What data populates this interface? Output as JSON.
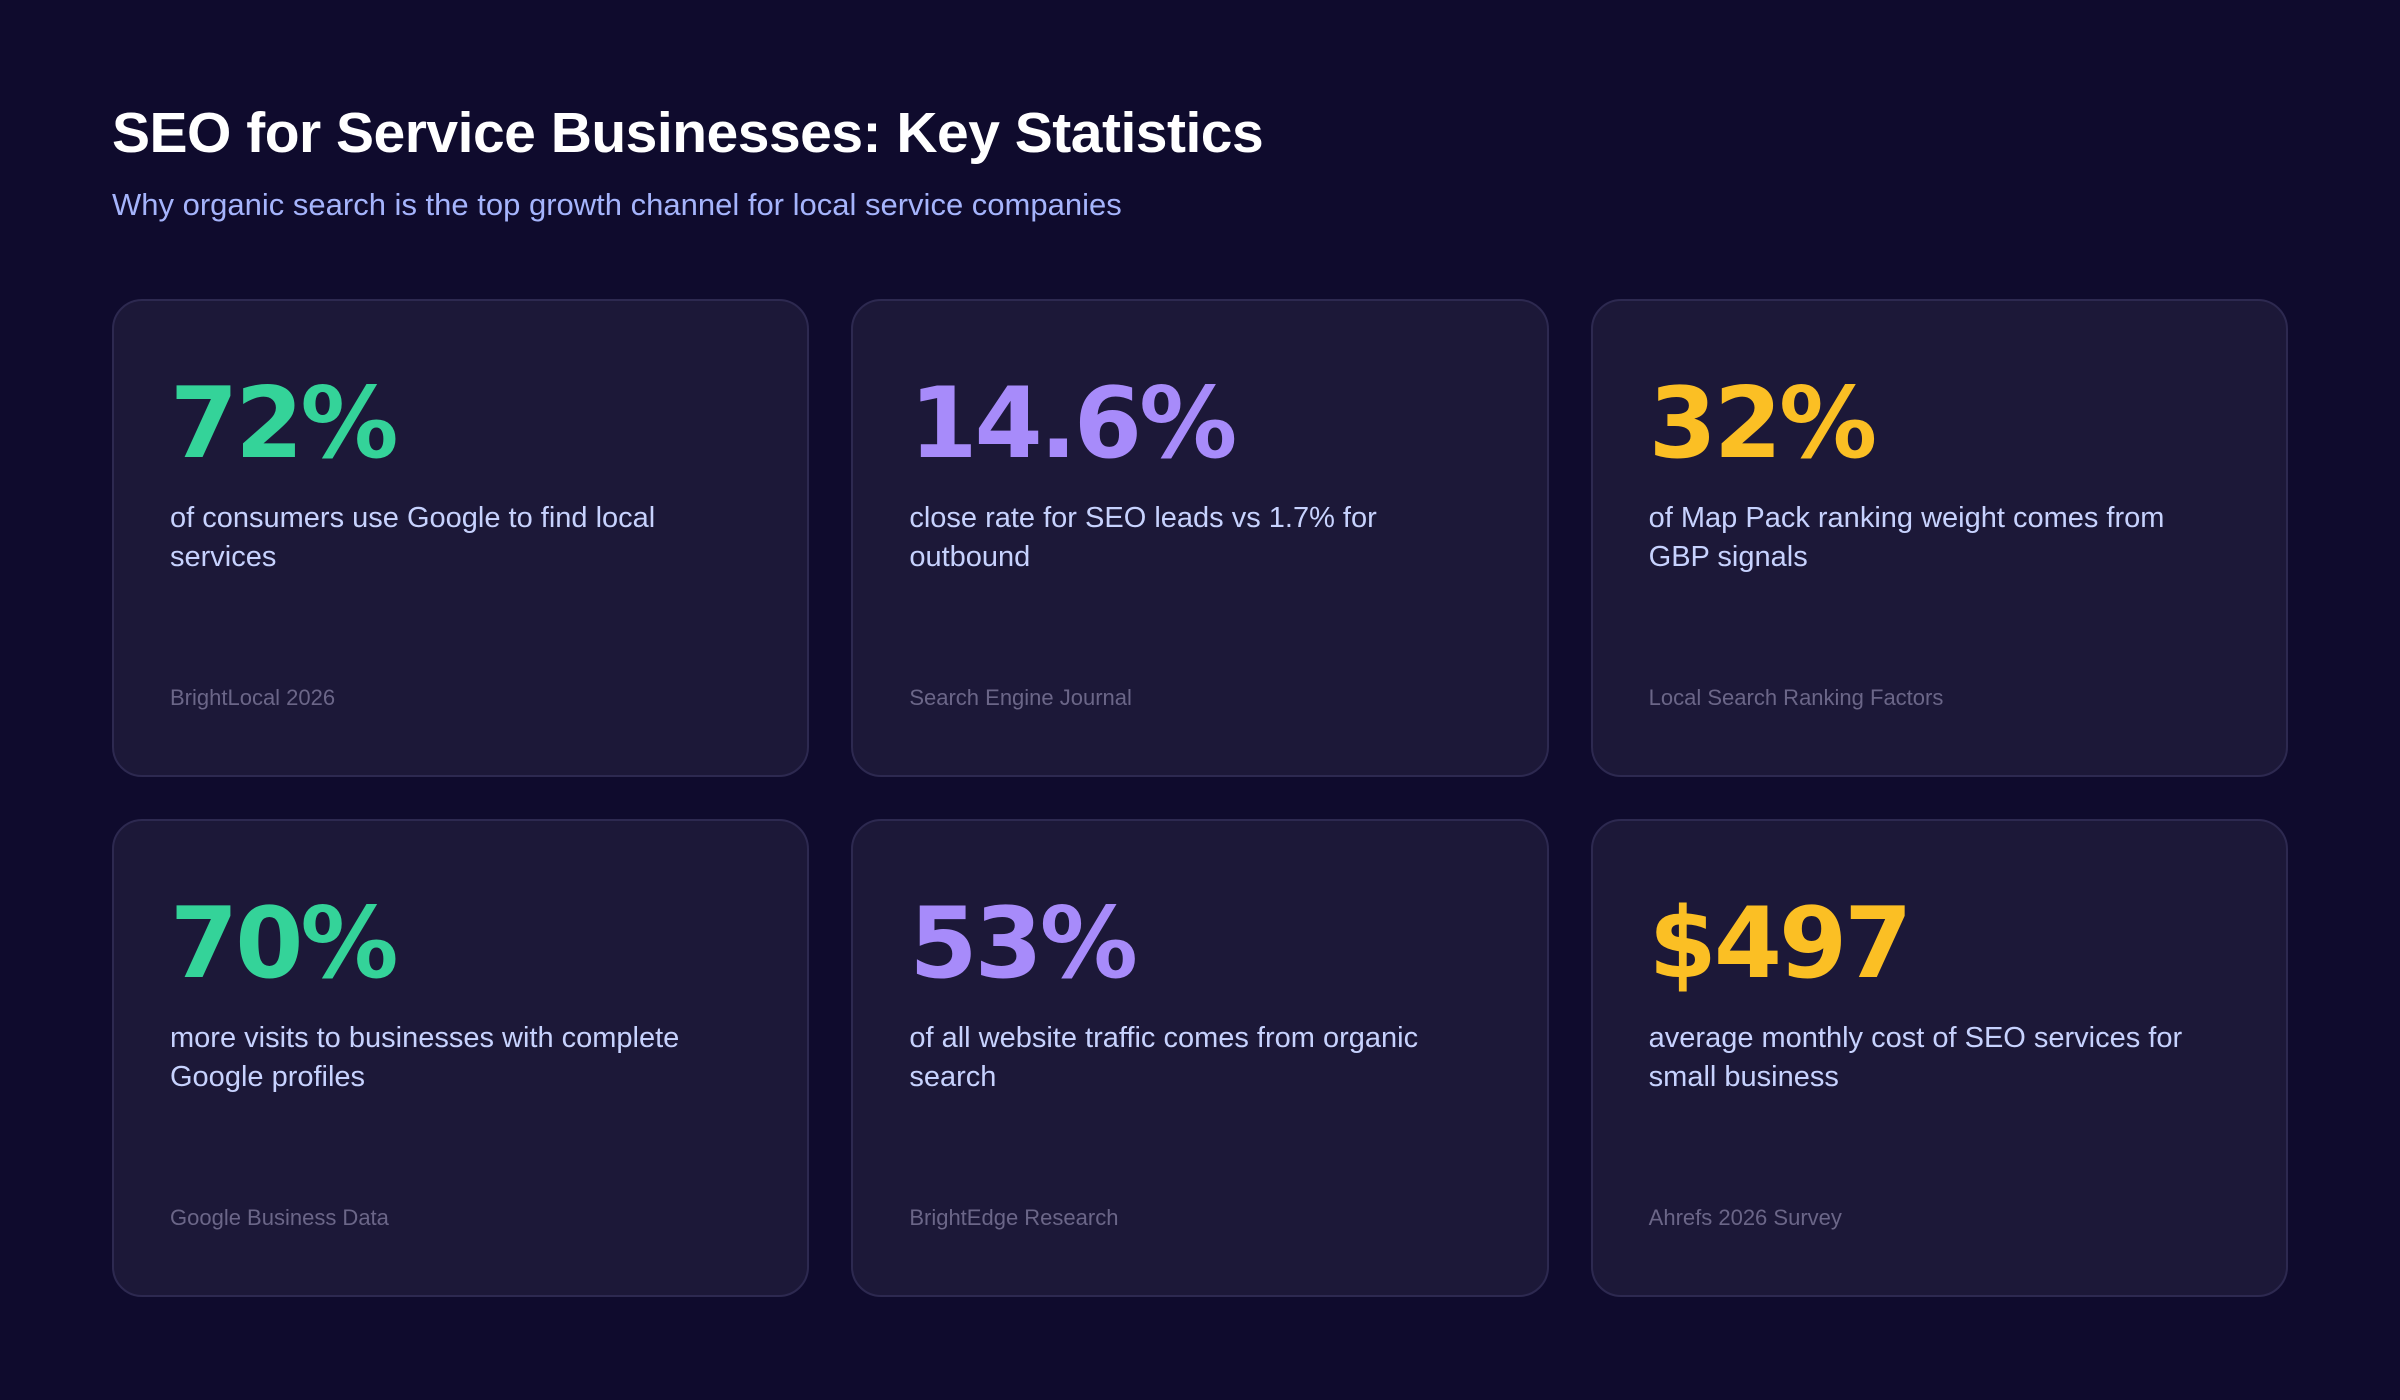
{
  "header": {
    "title": "SEO for Service Businesses: Key Statistics",
    "subtitle": "Why organic search is the top growth channel for local service companies"
  },
  "colors": {
    "green": "#34d399",
    "purple": "#a78bfa",
    "yellow": "#fbbf24",
    "background": "#0f0b2d",
    "card": "#1c1838"
  },
  "stats": [
    {
      "value": "72%",
      "description": "of consumers use Google to find local services",
      "source": "BrightLocal 2026",
      "color": "#34d399"
    },
    {
      "value": "14.6%",
      "description": "close rate for SEO leads vs 1.7% for outbound",
      "source": "Search Engine Journal",
      "color": "#a78bfa"
    },
    {
      "value": "32%",
      "description": "of Map Pack ranking weight comes from GBP signals",
      "source": "Local Search Ranking Factors",
      "color": "#fbbf24"
    },
    {
      "value": "70%",
      "description": "more visits to businesses with complete Google profiles",
      "source": "Google Business Data",
      "color": "#34d399"
    },
    {
      "value": "53%",
      "description": "of all website traffic comes from organic search",
      "source": "BrightEdge Research",
      "color": "#a78bfa"
    },
    {
      "value": "$497",
      "description": "average monthly cost of SEO services for small business",
      "source": "Ahrefs 2026 Survey",
      "color": "#fbbf24"
    }
  ]
}
